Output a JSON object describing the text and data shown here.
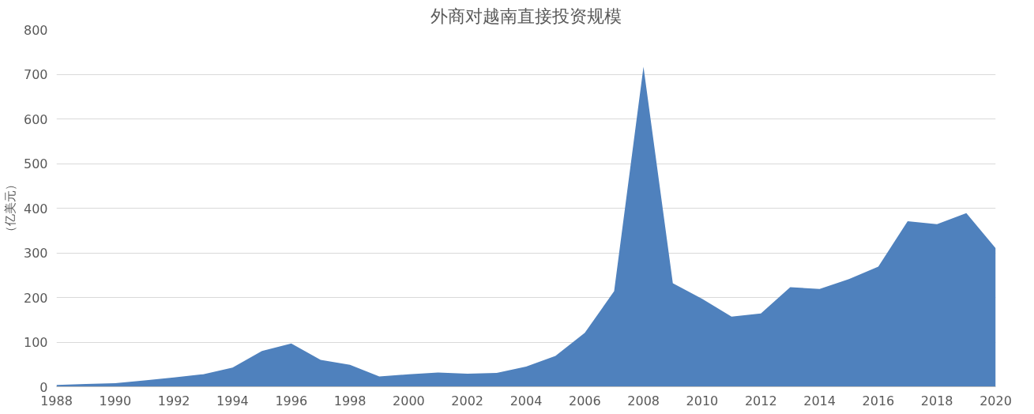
{
  "chart_data": {
    "type": "area",
    "title": "外商对越南直接投资规模",
    "ylabel": "（亿美元）",
    "x": [
      1988,
      1989,
      1990,
      1991,
      1992,
      1993,
      1994,
      1995,
      1996,
      1997,
      1998,
      1999,
      2000,
      2001,
      2002,
      2003,
      2004,
      2005,
      2006,
      2007,
      2008,
      2009,
      2010,
      2011,
      2012,
      2013,
      2014,
      2015,
      2016,
      2017,
      2018,
      2019,
      2020
    ],
    "series": [
      {
        "color": "#4f81bd",
        "values": [
          4,
          6,
          8,
          14,
          21,
          28,
          43,
          80,
          97,
          60,
          49,
          23,
          28,
          32,
          29,
          31,
          45,
          69,
          121,
          214,
          717,
          232,
          197,
          157,
          164,
          223,
          219,
          241,
          269,
          371,
          364,
          389,
          310
        ]
      }
    ],
    "xlim": [
      1988,
      2020
    ],
    "xticks": [
      1988,
      1990,
      1992,
      1994,
      1996,
      1998,
      2000,
      2002,
      2004,
      2006,
      2008,
      2010,
      2012,
      2014,
      2016,
      2018,
      2020
    ],
    "ylim": [
      0,
      800
    ],
    "yticks": [
      0,
      100,
      200,
      300,
      400,
      500,
      600,
      700,
      800
    ],
    "grid": "y"
  }
}
